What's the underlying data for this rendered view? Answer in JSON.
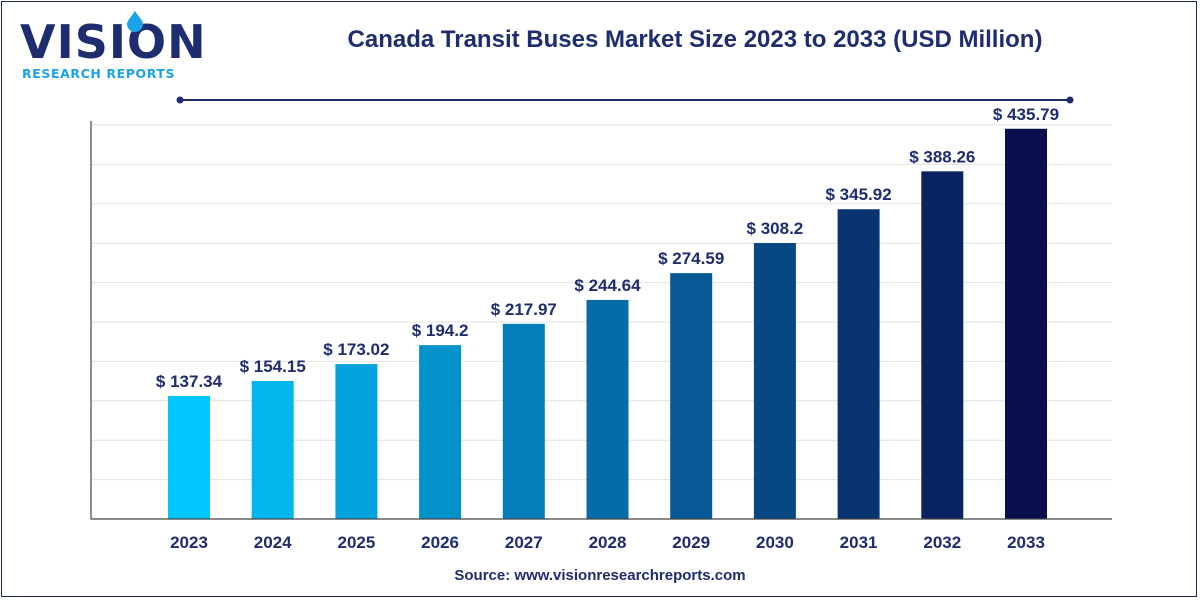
{
  "brand": {
    "name": "VISION",
    "tagline": "RESEARCH REPORTS"
  },
  "header": {
    "title": "Canada Transit Buses Market Size 2023 to 2033 (USD Million)"
  },
  "footer": {
    "source": "Source: www.visionresearchreports.com"
  },
  "colors": {
    "title": "#1e2d6f",
    "bar_start": "#00c8ff",
    "bar_end": "#0a0f4e",
    "grid": "#e2e2e2",
    "accent": "#1aa3e8"
  },
  "chart_data": {
    "type": "bar",
    "title": "Canada Transit Buses Market Size 2023 to 2033 (USD Million)",
    "categories": [
      "2023",
      "2024",
      "2025",
      "2026",
      "2027",
      "2028",
      "2029",
      "2030",
      "2031",
      "2032",
      "2033"
    ],
    "values": [
      137.34,
      154.15,
      173.02,
      194.2,
      217.97,
      244.64,
      274.59,
      308.2,
      345.92,
      388.26,
      435.79
    ],
    "data_labels": [
      "$ 137.34",
      "$ 154.15",
      "$ 173.02",
      "$ 194.2",
      "$ 217.97",
      "$ 244.64",
      "$ 274.59",
      "$ 308.2",
      "$ 345.92",
      "$ 388.26",
      "$ 435.79"
    ],
    "xlabel": "",
    "ylabel": "",
    "ylim": [
      0,
      440
    ],
    "grid": true,
    "legend": "none"
  }
}
